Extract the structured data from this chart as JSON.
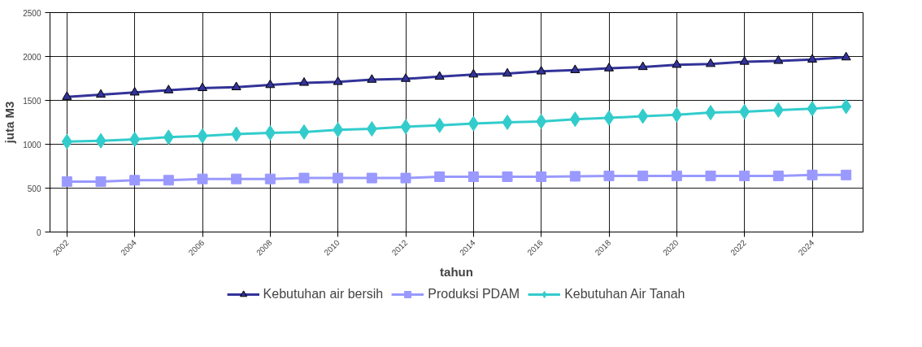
{
  "chart_data": {
    "type": "line",
    "xlabel": "tahun",
    "ylabel": "juta M3",
    "x": [
      2002,
      2003,
      2004,
      2005,
      2006,
      2007,
      2008,
      2009,
      2010,
      2011,
      2012,
      2013,
      2014,
      2015,
      2016,
      2017,
      2018,
      2019,
      2020,
      2021,
      2022,
      2023,
      2024,
      2025
    ],
    "xlim": [
      2001.5,
      2025.5
    ],
    "xticks": [
      2002,
      2004,
      2006,
      2008,
      2010,
      2012,
      2014,
      2016,
      2018,
      2020,
      2022,
      2024
    ],
    "ylim": [
      0,
      2500
    ],
    "yticks": [
      0,
      500,
      1000,
      1500,
      2000,
      2500
    ],
    "grid": true,
    "legend": "bottom",
    "series": [
      {
        "name": "Kebutuhan air bersih",
        "color": "#333399",
        "marker": "triangle",
        "values": [
          1540,
          1565,
          1590,
          1615,
          1640,
          1650,
          1675,
          1700,
          1710,
          1735,
          1745,
          1770,
          1795,
          1805,
          1830,
          1845,
          1865,
          1880,
          1905,
          1915,
          1940,
          1950,
          1965,
          1990
        ]
      },
      {
        "name": "Produksi PDAM",
        "color": "#9999ff",
        "marker": "square",
        "values": [
          575,
          575,
          590,
          590,
          605,
          605,
          605,
          615,
          615,
          615,
          615,
          630,
          630,
          630,
          630,
          635,
          640,
          640,
          640,
          640,
          640,
          640,
          650,
          650
        ]
      },
      {
        "name": "Kebutuhan Air Tanah",
        "color": "#33cccc",
        "marker": "diamond",
        "values": [
          1030,
          1040,
          1055,
          1080,
          1095,
          1115,
          1130,
          1140,
          1165,
          1175,
          1200,
          1215,
          1235,
          1250,
          1260,
          1285,
          1300,
          1320,
          1335,
          1360,
          1370,
          1390,
          1405,
          1430
        ]
      }
    ]
  }
}
